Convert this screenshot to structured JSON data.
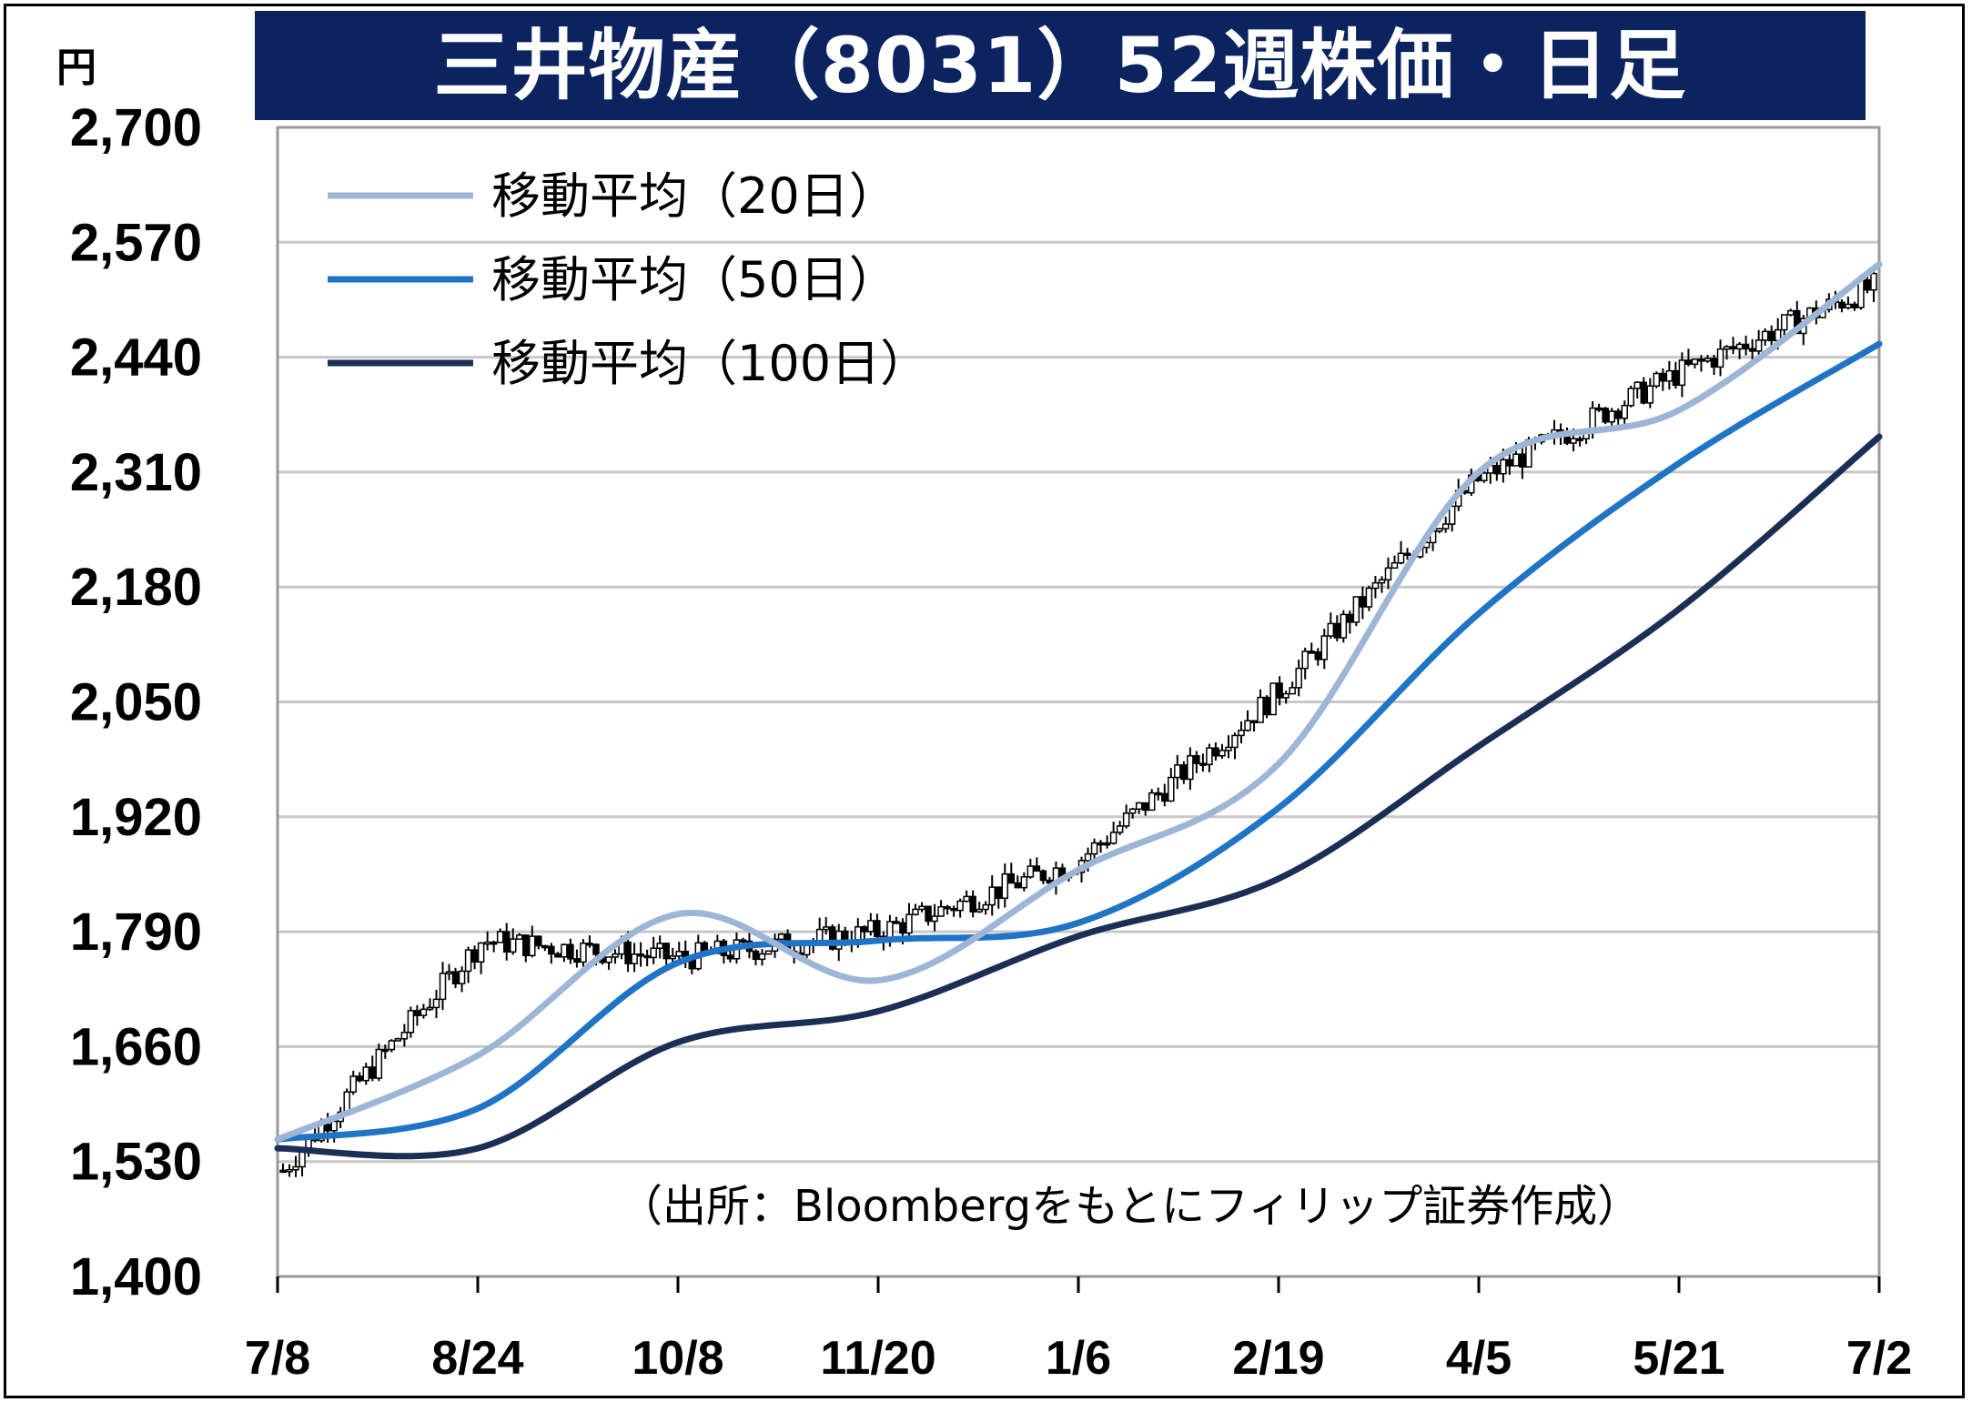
{
  "title": "三井物産（8031）52週株価・日足",
  "unit": "円",
  "source": "（出所：Bloombergをもとにフィリップ証券作成）",
  "chart_data": {
    "type": "candlestick",
    "title": "三井物産（8031）52週株価・日足",
    "ylabel": "円",
    "ylim": [
      1400,
      2700
    ],
    "y_ticks": [
      "2,700",
      "2,570",
      "2,440",
      "2,310",
      "2,180",
      "2,050",
      "1,920",
      "1,790",
      "1,660",
      "1,530",
      "1,400"
    ],
    "x_ticks": [
      "7/8",
      "8/24",
      "10/8",
      "11/20",
      "1/6",
      "2/19",
      "4/5",
      "5/21",
      "7/2"
    ],
    "grid": true,
    "legend_position": "top-left",
    "series": [
      {
        "name": "移動平均（20日）",
        "color": "#9db6d8",
        "x": [
          "7/8",
          "8/24",
          "10/8",
          "11/20",
          "1/6",
          "2/19",
          "4/5",
          "5/21",
          "7/2"
        ],
        "values": [
          1555,
          1650,
          1810,
          1735,
          1860,
          1980,
          2310,
          2380,
          2545
        ]
      },
      {
        "name": "移動平均（50日）",
        "color": "#1f74c5",
        "x": [
          "7/8",
          "8/24",
          "10/8",
          "11/20",
          "1/6",
          "2/19",
          "4/5",
          "5/21",
          "7/2"
        ],
        "values": [
          1555,
          1590,
          1755,
          1780,
          1800,
          1930,
          2150,
          2320,
          2455
        ]
      },
      {
        "name": "移動平均（100日）",
        "color": "#1b2f56",
        "x": [
          "7/8",
          "8/24",
          "10/8",
          "11/20",
          "1/6",
          "2/19",
          "4/5",
          "5/21",
          "7/2"
        ],
        "values": [
          1545,
          1545,
          1665,
          1700,
          1785,
          1850,
          2000,
          2155,
          2350
        ]
      }
    ],
    "price_range": {
      "x": [
        "7/8",
        "8/24",
        "10/8",
        "11/20",
        "1/6",
        "2/19",
        "4/5",
        "5/21",
        "7/2"
      ],
      "close": [
        1520,
        1780,
        1760,
        1790,
        1870,
        2060,
        2300,
        2420,
        2520
      ]
    }
  }
}
